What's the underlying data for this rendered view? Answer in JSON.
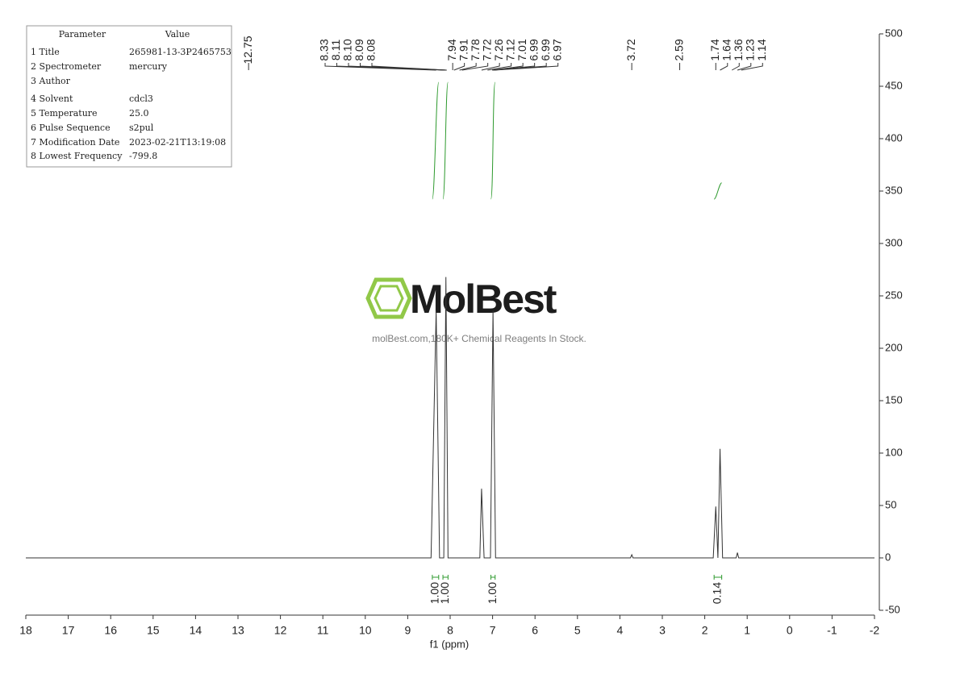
{
  "chart_data": {
    "type": "line",
    "x_label": "f1 (ppm)",
    "color": "#333333",
    "integral_color": "#2e9a2e",
    "xlim": [
      18,
      -2
    ],
    "xticks": [
      18,
      17,
      16,
      15,
      14,
      13,
      12,
      11,
      10,
      9,
      8,
      7,
      6,
      5,
      4,
      3,
      2,
      1,
      0,
      -1,
      -2
    ],
    "ylim": [
      -50,
      500
    ],
    "yticks": [
      -50,
      0,
      50,
      100,
      150,
      200,
      250,
      300,
      350,
      400,
      450,
      500
    ],
    "x": [
      18,
      8.45,
      8.33,
      8.25,
      8.15,
      8.1,
      8.05,
      7.3,
      7.26,
      7.2,
      7.05,
      6.99,
      6.93,
      3.75,
      3.72,
      3.69,
      1.8,
      1.74,
      1.69,
      1.64,
      1.58,
      1.26,
      1.23,
      1.2,
      -2
    ],
    "values": [
      0,
      0,
      236,
      0,
      0,
      268,
      0,
      0,
      66,
      0,
      0,
      236,
      0,
      0,
      3,
      0,
      0,
      49,
      0,
      104,
      0,
      0,
      5,
      0,
      0
    ],
    "peak_labels": [
      {
        "value": 12.75,
        "label": "12.75"
      },
      {
        "value": 8.33,
        "label": "8.33"
      },
      {
        "value": 8.11,
        "label": "8.11"
      },
      {
        "value": 8.1,
        "label": "8.10"
      },
      {
        "value": 8.09,
        "label": "8.09"
      },
      {
        "value": 8.08,
        "label": "8.08"
      },
      {
        "value": 7.94,
        "label": "7.94"
      },
      {
        "value": 7.91,
        "label": "7.91"
      },
      {
        "value": 7.78,
        "label": "7.78"
      },
      {
        "value": 7.72,
        "label": "7.72"
      },
      {
        "value": 7.26,
        "label": "7.26"
      },
      {
        "value": 7.12,
        "label": "7.12"
      },
      {
        "value": 7.01,
        "label": "7.01"
      },
      {
        "value": 6.99,
        "label": "6.99"
      },
      {
        "value": 6.99,
        "label": "6.99"
      },
      {
        "value": 6.97,
        "label": "6.97"
      },
      {
        "value": 3.72,
        "label": "3.72"
      },
      {
        "value": 2.59,
        "label": "2.59"
      },
      {
        "value": 1.74,
        "label": "1.74"
      },
      {
        "value": 1.64,
        "label": "1.64"
      },
      {
        "value": 1.36,
        "label": "1.36"
      },
      {
        "value": 1.23,
        "label": "1.23"
      },
      {
        "value": 1.14,
        "label": "1.14"
      }
    ],
    "integrals": {
      "ranges": [
        [
          8.42,
          8.27
        ],
        [
          8.17,
          8.05
        ],
        [
          7.04,
          6.94
        ],
        [
          1.78,
          1.6
        ]
      ],
      "values": [
        1,
        1,
        1,
        0.14
      ],
      "value_labels": [
        "1.00",
        "1.00",
        "1.00",
        "0.14"
      ]
    }
  },
  "parameters": {
    "header": [
      "Parameter",
      "Value"
    ],
    "rows": [
      [
        "1 Title",
        "265981-13-3P2465753"
      ],
      [
        "2 Spectrometer",
        "mercury"
      ],
      [
        "3 Author"
      ],
      [
        "4 Solvent",
        "cdcl3"
      ],
      [
        "5 Temperature",
        "25.0"
      ],
      [
        "6 Pulse Sequence",
        "s2pul"
      ],
      [
        "7 Modification Date",
        "2023-02-21T13:19:08"
      ],
      [
        "8 Lowest Frequency",
        "-799.8"
      ]
    ]
  },
  "watermark": {
    "brand": "MolBest",
    "tagline": "molBest.com,180K+ Chemical Reagents In Stock."
  }
}
